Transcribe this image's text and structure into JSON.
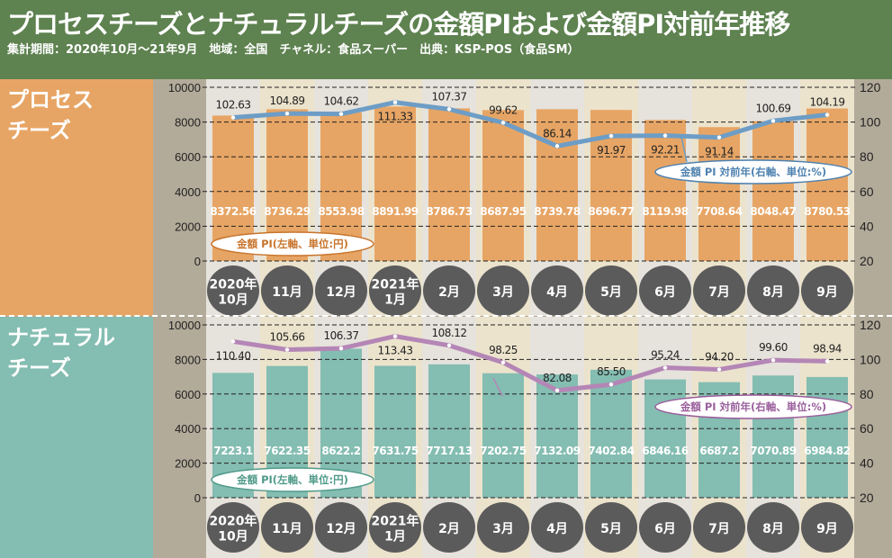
{
  "title": "プロセスチーズとナチュラルチーズの金額PIおよび金額PI対前年推移",
  "subtitle": "集計期間：2020年10月～21年9月　地域：全国　チャネル：食品スーパー　出典：KSP-POS（食品SM）",
  "colors": {
    "header": "#5e8250",
    "process_bar": "#e7a565",
    "process_line": "#6d9dc6",
    "natural_bar": "#84bdb1",
    "natural_line": "#b486b6",
    "month_circle": "#5b5b5b"
  },
  "chart_data": [
    {
      "type": "bar+line",
      "panel_label": "プロセス\nチーズ",
      "categories": [
        "2020年\n10月",
        "11月",
        "12月",
        "2021年\n1月",
        "2月",
        "3月",
        "4月",
        "5月",
        "6月",
        "7月",
        "8月",
        "9月"
      ],
      "series": [
        {
          "name": "金額 PI(左軸、単位:円)",
          "axis": "left",
          "type": "bar",
          "values": [
            8372.56,
            8736.29,
            8553.98,
            8891.99,
            8786.73,
            8687.95,
            8739.78,
            8696.77,
            8119.98,
            7708.64,
            8048.47,
            8780.53
          ]
        },
        {
          "name": "金額 PI 対前年(右軸、単位:%)",
          "axis": "right",
          "type": "line",
          "values": [
            102.63,
            104.89,
            104.62,
            111.33,
            107.37,
            99.62,
            86.14,
            91.97,
            92.21,
            91.14,
            100.69,
            104.19
          ]
        }
      ],
      "left_axis": {
        "range": [
          0,
          10000
        ],
        "ticks": [
          "0",
          "2000",
          "4000",
          "6000",
          "8000",
          "10000"
        ]
      },
      "right_axis": {
        "range": [
          20,
          120
        ],
        "ticks": [
          "20",
          "40",
          "60",
          "80",
          "100",
          "120"
        ]
      },
      "grid": true
    },
    {
      "type": "bar+line",
      "panel_label": "ナチュラル\nチーズ",
      "categories": [
        "2020年\n10月",
        "11月",
        "12月",
        "2021年\n1月",
        "2月",
        "3月",
        "4月",
        "5月",
        "6月",
        "7月",
        "8月",
        "9月"
      ],
      "series": [
        {
          "name": "金額 PI(左軸、単位:円)",
          "axis": "left",
          "type": "bar",
          "values": [
            7223.1,
            7622.35,
            8622.2,
            7631.75,
            7717.13,
            7202.75,
            7132.09,
            7402.84,
            6846.16,
            6687.2,
            7070.89,
            6984.82
          ]
        },
        {
          "name": "金額 PI 対前年(右軸、単位:%)",
          "axis": "right",
          "type": "line",
          "values": [
            110.4,
            105.66,
            106.37,
            113.43,
            108.12,
            98.25,
            82.08,
            85.5,
            95.24,
            94.2,
            99.6,
            98.94
          ]
        }
      ],
      "left_axis": {
        "range": [
          0,
          10000
        ],
        "ticks": [
          "0",
          "2000",
          "4000",
          "6000",
          "8000",
          "10000"
        ]
      },
      "right_axis": {
        "range": [
          20,
          120
        ],
        "ticks": [
          "20",
          "40",
          "60",
          "80",
          "100",
          "120"
        ]
      },
      "grid": true
    }
  ]
}
